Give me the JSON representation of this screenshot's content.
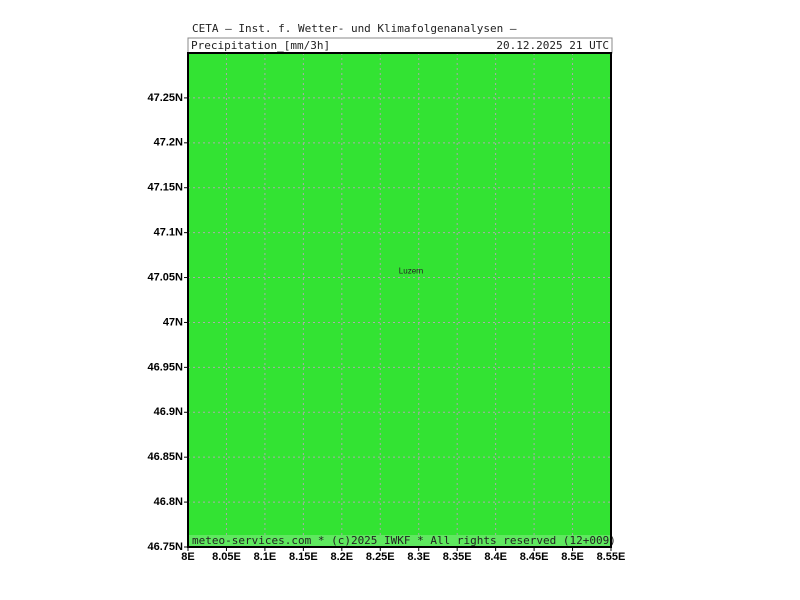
{
  "header": {
    "title": "CETA — Inst. f. Wetter- und Klimafolgenanalysen —",
    "parameter": "Precipitation_[mm/3h]",
    "valid_time": "20.12.2025 21 UTC"
  },
  "footer": "meteo-services.com * (c)2025 IWKF * All rights reserved (12+009)",
  "map": {
    "lonlim": [
      8,
      8.55
    ],
    "latlim": [
      46.75,
      47.3
    ],
    "fill_color": "#33e333",
    "lonticks": [
      {
        "value": 8,
        "label": "8E"
      },
      {
        "value": 8.05,
        "label": "8.05E"
      },
      {
        "value": 8.1,
        "label": "8.1E"
      },
      {
        "value": 8.15,
        "label": "8.15E"
      },
      {
        "value": 8.2,
        "label": "8.2E"
      },
      {
        "value": 8.25,
        "label": "8.25E"
      },
      {
        "value": 8.3,
        "label": "8.3E"
      },
      {
        "value": 8.35,
        "label": "8.35E"
      },
      {
        "value": 8.4,
        "label": "8.4E"
      },
      {
        "value": 8.45,
        "label": "8.45E"
      },
      {
        "value": 8.5,
        "label": "8.5E"
      },
      {
        "value": 8.55,
        "label": "8.55E"
      }
    ],
    "latticks": [
      {
        "value": 46.75,
        "label": "46.75N"
      },
      {
        "value": 46.8,
        "label": "46.8N"
      },
      {
        "value": 46.85,
        "label": "46.85N"
      },
      {
        "value": 46.9,
        "label": "46.9N"
      },
      {
        "value": 46.95,
        "label": "46.95N"
      },
      {
        "value": 47,
        "label": "47N"
      },
      {
        "value": 47.05,
        "label": "47.05N"
      },
      {
        "value": 47.1,
        "label": "47.1N"
      },
      {
        "value": 47.15,
        "label": "47.15N"
      },
      {
        "value": 47.2,
        "label": "47.2N"
      },
      {
        "value": 47.25,
        "label": "47.25N"
      }
    ],
    "cities": [
      {
        "name": "Luzern",
        "lon": 8.29,
        "lat": 47.05
      }
    ]
  }
}
